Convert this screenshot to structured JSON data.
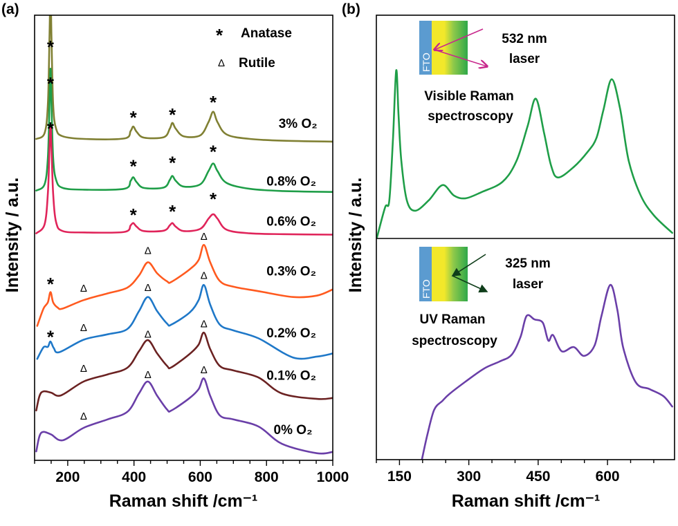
{
  "chart_data": [
    {
      "panel": "(a)",
      "type": "line",
      "xlabel": "Raman shift /cm⁻¹",
      "ylabel": "Intensity / a.u.",
      "xlim": [
        100,
        1000
      ],
      "ylim": [
        0,
        100
      ],
      "xticks": [
        200,
        400,
        600,
        800,
        1000
      ],
      "xtick_labels": [
        "200",
        "400",
        "600",
        "800",
        "1000"
      ],
      "grid": false,
      "legend": [
        {
          "symbol": "*",
          "label": "Anatase"
        },
        {
          "symbol": "Δ",
          "label": "Rutile"
        }
      ],
      "legend_placement": "top-right",
      "series": [
        {
          "name": "3% O₂",
          "color": "#808033",
          "label_pos": [
            895,
            75.8
          ],
          "x": [
            105,
            130,
            140,
            145,
            148,
            151,
            156,
            165,
            185,
            250,
            370,
            390,
            398,
            408,
            430,
            490,
            508,
            516,
            526,
            550,
            600,
            625,
            639,
            652,
            680,
            750,
            850,
            1000
          ],
          "y": [
            72.2,
            73.5,
            80,
            95,
            106,
            95,
            80,
            74.5,
            72.8,
            72.2,
            72.3,
            74,
            75,
            73.8,
            72.5,
            72.6,
            74.5,
            75.8,
            74.5,
            72.8,
            73,
            76,
            78.3,
            76,
            73.2,
            72.2,
            71.8,
            71.6
          ]
        },
        {
          "name": "0.8% O₂",
          "color": "#1f9e48",
          "label_pos": [
            875,
            62.8
          ],
          "x": [
            105,
            130,
            140,
            145,
            148,
            151,
            156,
            165,
            185,
            250,
            370,
            390,
            398,
            408,
            430,
            490,
            508,
            516,
            526,
            550,
            600,
            625,
            639,
            652,
            680,
            750,
            850,
            1000
          ],
          "y": [
            60.6,
            62,
            68,
            80,
            88,
            80,
            68,
            63,
            61.2,
            60.8,
            61,
            62.8,
            63.6,
            62.5,
            61.2,
            61.3,
            63,
            63.9,
            62.8,
            61.5,
            62,
            65,
            66.7,
            65,
            62.3,
            61,
            60.5,
            60.3
          ]
        },
        {
          "name": "0.6% O₂",
          "color": "#e0245a",
          "label_pos": [
            875,
            53.8
          ],
          "x": [
            105,
            130,
            140,
            145,
            148,
            151,
            156,
            165,
            185,
            250,
            370,
            390,
            398,
            408,
            430,
            490,
            508,
            516,
            526,
            550,
            600,
            625,
            639,
            652,
            680,
            750,
            850,
            1000
          ],
          "y": [
            51,
            53,
            60,
            70,
            75.5,
            70,
            60,
            53.5,
            51.5,
            51.2,
            51.3,
            52.8,
            53.3,
            52.5,
            51.5,
            51.6,
            52.8,
            53.3,
            52.5,
            51.5,
            52,
            54.3,
            55.3,
            54.3,
            51.8,
            51,
            50.8,
            50.7
          ]
        },
        {
          "name": "0.3% O₂",
          "color": "#ff5a1f",
          "label_pos": [
            875,
            42.6
          ],
          "x": [
            108,
            127,
            140,
            148,
            156,
            170,
            185,
            248,
            320,
            380,
            415,
            442,
            470,
            500,
            513,
            568,
            595,
            611,
            630,
            659,
            700,
            776,
            880,
            952,
            1000
          ],
          "y": [
            30.2,
            34.1,
            35.5,
            37.8,
            35.5,
            34.3,
            34.1,
            36,
            37.5,
            38.8,
            41.5,
            44.5,
            42,
            40.2,
            40.1,
            42.9,
            45,
            48.4,
            44.5,
            40.3,
            39,
            38,
            36.7,
            37,
            38.4
          ]
        },
        {
          "name": "0.2% O₂",
          "color": "#1f78c8",
          "label_pos": [
            875,
            28.7
          ],
          "x": [
            108,
            127,
            140,
            148,
            158,
            175,
            248,
            320,
            380,
            415,
            442,
            470,
            500,
            513,
            568,
            595,
            611,
            630,
            659,
            700,
            776,
            880,
            952,
            1000
          ],
          "y": [
            22.8,
            25.4,
            25.5,
            26.7,
            25.2,
            24.3,
            27.1,
            28.3,
            29.5,
            33.5,
            36.7,
            33.5,
            30.7,
            30.5,
            33.2,
            36,
            39.4,
            35,
            30.5,
            29.2,
            27.4,
            23.1,
            23.3,
            24
          ]
        },
        {
          "name": "0.1% O₂",
          "color": "#6b2222",
          "label_pos": [
            875,
            19.2
          ],
          "x": [
            105,
            115,
            127,
            150,
            180,
            248,
            320,
            380,
            415,
            442,
            470,
            500,
            513,
            568,
            595,
            611,
            630,
            659,
            700,
            776,
            847,
            952,
            1000
          ],
          "y": [
            11.2,
            14.5,
            15.5,
            15.2,
            14.6,
            17.7,
            19.3,
            20.8,
            24.5,
            27,
            24,
            21.2,
            20.9,
            23.9,
            26,
            28.7,
            25,
            21.2,
            20.2,
            18.6,
            15,
            13.8,
            14
          ]
        },
        {
          "name": "0% O₂",
          "color": "#6a3fa8",
          "label_pos": [
            880,
            7
          ],
          "x": [
            105,
            115,
            127,
            150,
            185,
            248,
            320,
            380,
            415,
            442,
            470,
            500,
            513,
            568,
            595,
            611,
            630,
            659,
            700,
            776,
            847,
            952,
            1000
          ],
          "y": [
            2,
            5.5,
            6.4,
            5.8,
            4.5,
            7.3,
            9.2,
            10.9,
            15,
            17.7,
            14.5,
            11.4,
            11.2,
            14,
            16,
            18.4,
            14.5,
            10.1,
            9.2,
            7.6,
            3.7,
            1.6,
            1.9
          ]
        }
      ],
      "annotations": [
        {
          "symbol": "*",
          "x": 148,
          "y": 93.3
        },
        {
          "symbol": "*",
          "x": 398,
          "y": 77.5
        },
        {
          "symbol": "*",
          "x": 516,
          "y": 78.1
        },
        {
          "symbol": "*",
          "x": 639,
          "y": 80.9
        },
        {
          "symbol": "*",
          "x": 148,
          "y": 85.1
        },
        {
          "symbol": "*",
          "x": 398,
          "y": 66.5
        },
        {
          "symbol": "*",
          "x": 516,
          "y": 67.3
        },
        {
          "symbol": "*",
          "x": 639,
          "y": 69.8
        },
        {
          "symbol": "*",
          "x": 148,
          "y": 75
        },
        {
          "symbol": "*",
          "x": 398,
          "y": 55.6
        },
        {
          "symbol": "*",
          "x": 516,
          "y": 56.4
        },
        {
          "symbol": "*",
          "x": 639,
          "y": 59.2
        },
        {
          "symbol": "*",
          "x": 148,
          "y": 40.1
        },
        {
          "symbol": "Δ",
          "x": 248,
          "y": 38.8
        },
        {
          "symbol": "Δ",
          "x": 442,
          "y": 47.3
        },
        {
          "symbol": "Δ",
          "x": 611,
          "y": 50.5
        },
        {
          "symbol": "*",
          "x": 148,
          "y": 28.2
        },
        {
          "symbol": "Δ",
          "x": 248,
          "y": 30
        },
        {
          "symbol": "Δ",
          "x": 442,
          "y": 39
        },
        {
          "symbol": "Δ",
          "x": 611,
          "y": 41.7
        },
        {
          "symbol": "Δ",
          "x": 248,
          "y": 20.8
        },
        {
          "symbol": "Δ",
          "x": 442,
          "y": 28.5
        },
        {
          "symbol": "Δ",
          "x": 611,
          "y": 30.8
        },
        {
          "symbol": "Δ",
          "x": 248,
          "y": 10.1
        },
        {
          "symbol": "Δ",
          "x": 442,
          "y": 19.4
        },
        {
          "symbol": "Δ",
          "x": 611,
          "y": 20.5
        }
      ]
    },
    {
      "panel": "(b)",
      "type": "line",
      "xlabel": "Raman shift /cm⁻¹",
      "ylabel": "Intensity / a.u.",
      "xlim": [
        100,
        745
      ],
      "xticks": [
        150,
        300,
        450,
        600
      ],
      "xtick_labels": [
        "150",
        "300",
        "450",
        "600"
      ],
      "grid": false,
      "subplots": [
        {
          "ylim": [
            0,
            100
          ],
          "laser_label": [
            "532 nm",
            "laser"
          ],
          "caption": [
            "Visible Raman",
            "spectroscopy"
          ],
          "inset_label": "FTO",
          "arrow_color": "#c8288c",
          "series": {
            "color": "#1f9e48",
            "x": [
              101.5,
              119,
              128,
              136,
              143,
              148,
              154,
              166,
              184,
              213,
              243,
              268,
              293,
              328,
              373,
              403,
              427,
              445,
              463,
              478,
              493,
              527,
              557,
              576,
              591,
              609,
              627,
              646,
              672,
              701,
              740
            ],
            "y": [
              0.6,
              14,
              17,
              45,
              75.3,
              55,
              34.7,
              17,
              12.4,
              17,
              23.9,
              19.2,
              18,
              20.8,
              25.4,
              34.7,
              50.2,
              62.6,
              47,
              32.6,
              27.3,
              32,
              38.8,
              45,
              57.4,
              71.3,
              58.3,
              34.7,
              19.2,
              10.2,
              2.5
            ]
          }
        },
        {
          "ylim": [
            0,
            100
          ],
          "laser_label": [
            "325 nm",
            "laser"
          ],
          "caption": [
            "UV Raman",
            "spectroscopy"
          ],
          "inset_label": "FTO",
          "arrow_color": "#0f3d1a",
          "series": {
            "color": "#6a3fa8",
            "x": [
              198.5,
              210,
              225,
              243,
              258,
              293,
              333,
              367,
              393,
              412,
              425,
              442,
              460,
              472,
              482,
              501,
              527,
              549,
              572,
              587,
              606,
              621,
              634,
              661,
              691,
              721,
              740
            ],
            "y": [
              0,
              11,
              22.5,
              26.6,
              29.7,
              35.3,
              41.2,
              44.4,
              47.5,
              55.6,
              65,
              63.4,
              61.9,
              53.8,
              56.3,
              49,
              50.9,
              46.9,
              51.6,
              65,
              79,
              68.1,
              50.6,
              35,
              31.9,
              28.7,
              24
            ]
          }
        }
      ]
    }
  ]
}
